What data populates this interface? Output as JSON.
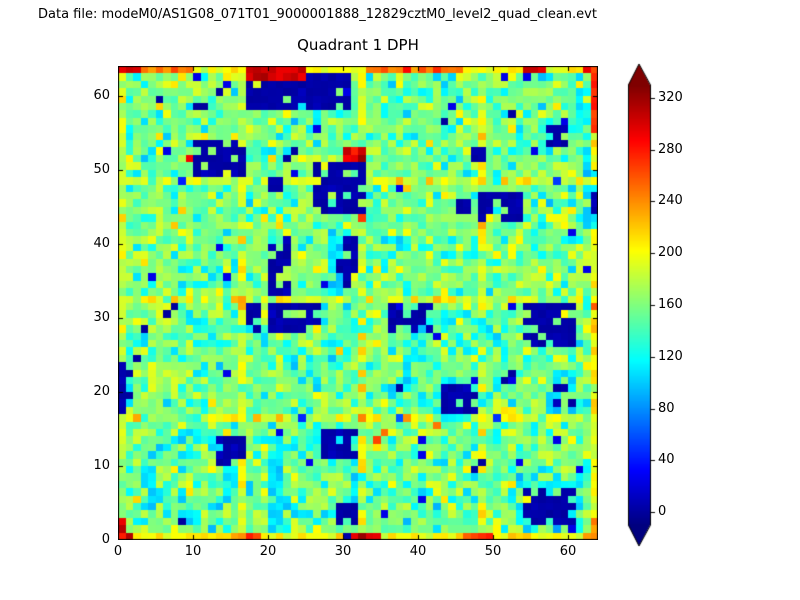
{
  "header": {
    "text": "Data file: modeM0/AS1G08_071T01_9000001888_12829cztM0_level2_quad_clean.evt"
  },
  "colors": {
    "background": "#ffffff",
    "text": "#000000",
    "axes": "#000000"
  },
  "chart_data": {
    "type": "heatmap",
    "title": "Quadrant 1 DPH",
    "grid": {
      "nx": 64,
      "ny": 64
    },
    "xlim": [
      0,
      64
    ],
    "ylim": [
      0,
      64
    ],
    "xticks": [
      0,
      10,
      20,
      30,
      40,
      50,
      60
    ],
    "yticks": [
      0,
      10,
      20,
      30,
      40,
      50,
      60
    ],
    "colormap": "jet",
    "colorbar": {
      "ticks": [
        0,
        40,
        80,
        120,
        160,
        200,
        240,
        280,
        320
      ],
      "vmin": -10,
      "vmax": 330,
      "extend": "both"
    },
    "background": {
      "mean": 158,
      "sd": 16,
      "seed": 42,
      "low_speckle_value": 112,
      "low_speckle_prob": 0.1,
      "high_speckle_value": 196,
      "high_speckle_prob": 0.07,
      "dark_speckle_value": 25,
      "dark_speckle_prob": 0.012
    },
    "module_boundaries": {
      "cols": [
        16,
        32,
        48
      ],
      "rows": [
        16,
        32,
        48
      ],
      "boost": 28
    },
    "edges": {
      "top_row": {
        "y": 63,
        "v": 195,
        "segments": [
          {
            "x0": 0,
            "x1": 2,
            "v": 295
          },
          {
            "x0": 3,
            "x1": 9,
            "v": 250
          },
          {
            "x0": 17,
            "x1": 24,
            "v": 300
          },
          {
            "x0": 33,
            "x1": 45,
            "v": 252
          },
          {
            "x0": 54,
            "x1": 56,
            "v": 300
          },
          {
            "x0": 62,
            "x1": 63,
            "v": 285
          }
        ]
      },
      "bottom_row": {
        "y": 0,
        "v": 200,
        "segments": [
          {
            "x0": 0,
            "x1": 1,
            "v": 308
          },
          {
            "x0": 15,
            "x1": 18,
            "v": 258
          },
          {
            "x0": 31,
            "x1": 34,
            "v": 298
          },
          {
            "x0": 46,
            "x1": 49,
            "v": 262
          },
          {
            "x0": 62,
            "x1": 63,
            "v": 252
          }
        ]
      },
      "left_col": {
        "x": 0,
        "v": 182,
        "segments": [
          {
            "y0": 0,
            "y1": 2,
            "v": 298
          }
        ]
      },
      "right_col": {
        "x": 63,
        "v": 200,
        "segments": [
          {
            "y0": 55,
            "y1": 63,
            "v": 272
          },
          {
            "y0": 0,
            "y1": 2,
            "v": 248
          }
        ]
      }
    },
    "rings": [
      {
        "cx": 9.5,
        "cy": 8.5,
        "r": 6.2,
        "thickness": 1.5,
        "v": 110,
        "p": 0.85
      },
      {
        "cx": 26.5,
        "cy": 8.5,
        "r": 6.0,
        "thickness": 1.5,
        "v": 112,
        "p": 0.8
      },
      {
        "cx": 45.0,
        "cy": 23.5,
        "r": 7.3,
        "thickness": 1.6,
        "v": 112,
        "p": 0.75
      }
    ],
    "features": [
      {
        "x": 17,
        "y": 58,
        "w": 14,
        "h": 5,
        "v": 0,
        "p": 0.9
      },
      {
        "x": 10,
        "y": 49,
        "w": 7,
        "h": 5,
        "v": 0,
        "p": 0.85
      },
      {
        "x": 20,
        "y": 47,
        "w": 2,
        "h": 2,
        "v": 0,
        "p": 1
      },
      {
        "x": 26,
        "y": 44,
        "w": 7,
        "h": 7,
        "v": 0,
        "p": 0.8
      },
      {
        "x": 30,
        "y": 51,
        "w": 3,
        "h": 2,
        "v": 298,
        "p": 0.8
      },
      {
        "x": 17,
        "y": 62,
        "w": 8,
        "h": 2,
        "v": 300,
        "p": 1
      },
      {
        "x": 48,
        "y": 43,
        "w": 6,
        "h": 4,
        "v": 0,
        "p": 0.85
      },
      {
        "x": 45,
        "y": 44,
        "w": 2,
        "h": 2,
        "v": 0,
        "p": 1
      },
      {
        "x": 62,
        "y": 42,
        "w": 2,
        "h": 9,
        "v": 105,
        "p": 0.8
      },
      {
        "x": 63,
        "y": 44,
        "w": 1,
        "h": 3,
        "v": 0,
        "p": 1
      },
      {
        "x": 20,
        "y": 33,
        "w": 3,
        "h": 8,
        "v": 0,
        "p": 0.65
      },
      {
        "x": 28,
        "y": 33,
        "w": 2,
        "h": 9,
        "v": 105,
        "p": 0.8
      },
      {
        "x": 29,
        "y": 34,
        "w": 3,
        "h": 7,
        "v": 0,
        "p": 0.7
      },
      {
        "x": 17,
        "y": 28,
        "w": 10,
        "h": 4,
        "v": 0,
        "p": 0.75
      },
      {
        "x": 36,
        "y": 28,
        "w": 6,
        "h": 4,
        "v": 0,
        "p": 0.8
      },
      {
        "x": 43,
        "y": 17,
        "w": 5,
        "h": 4,
        "v": 0,
        "p": 0.85
      },
      {
        "x": 54,
        "y": 26,
        "w": 7,
        "h": 6,
        "v": 0,
        "p": 0.85
      },
      {
        "x": 0,
        "y": 17,
        "w": 1,
        "h": 7,
        "v": 0,
        "p": 1
      },
      {
        "x": 57,
        "y": 17,
        "w": 5,
        "h": 5,
        "v": 110,
        "p": 0.55
      },
      {
        "x": 58,
        "y": 18,
        "w": 3,
        "h": 3,
        "v": 0,
        "p": 0.6
      },
      {
        "x": 13,
        "y": 10,
        "w": 4,
        "h": 4,
        "v": 0,
        "p": 0.85
      },
      {
        "x": 20,
        "y": 1,
        "w": 2,
        "h": 13,
        "v": 110,
        "p": 0.9
      },
      {
        "x": 27,
        "y": 11,
        "w": 5,
        "h": 4,
        "v": 0,
        "p": 0.85
      },
      {
        "x": 29,
        "y": 0,
        "w": 3,
        "h": 5,
        "v": 0,
        "p": 0.75
      },
      {
        "x": 53,
        "y": 1,
        "w": 9,
        "h": 8,
        "v": 110,
        "p": 0.35
      },
      {
        "x": 54,
        "y": 2,
        "w": 7,
        "h": 5,
        "v": 0,
        "p": 0.85
      },
      {
        "x": 57,
        "y": 53,
        "w": 3,
        "h": 3,
        "v": 0,
        "p": 0.7
      },
      {
        "x": 61,
        "y": 55,
        "w": 2,
        "h": 6,
        "v": 110,
        "p": 0.7
      },
      {
        "x": 47,
        "y": 51,
        "w": 2,
        "h": 2,
        "v": 0,
        "p": 1
      }
    ],
    "spots": [
      [
        5,
        59,
        0
      ],
      [
        10,
        58,
        0
      ],
      [
        11,
        58,
        0
      ],
      [
        13,
        60,
        0
      ],
      [
        43,
        56,
        0
      ],
      [
        52,
        57,
        0
      ],
      [
        26,
        57,
        115
      ],
      [
        40,
        60,
        115
      ],
      [
        9,
        51,
        290
      ],
      [
        22,
        51,
        0
      ],
      [
        23,
        52,
        0
      ],
      [
        32,
        43,
        268
      ],
      [
        63,
        31,
        258
      ],
      [
        3,
        28,
        0
      ],
      [
        6,
        30,
        0
      ],
      [
        7,
        31,
        0
      ],
      [
        2,
        24,
        0
      ],
      [
        1,
        19,
        0
      ],
      [
        1,
        22,
        0
      ],
      [
        34,
        13,
        265
      ],
      [
        35,
        14,
        250
      ],
      [
        42,
        15,
        248
      ],
      [
        47,
        9,
        0
      ],
      [
        48,
        10,
        0
      ],
      [
        61,
        8,
        115
      ],
      [
        62,
        9,
        115
      ],
      [
        51,
        21,
        0
      ],
      [
        52,
        22,
        0
      ],
      [
        37,
        20,
        0
      ],
      [
        8,
        2,
        0
      ],
      [
        44,
        5,
        115
      ]
    ]
  }
}
